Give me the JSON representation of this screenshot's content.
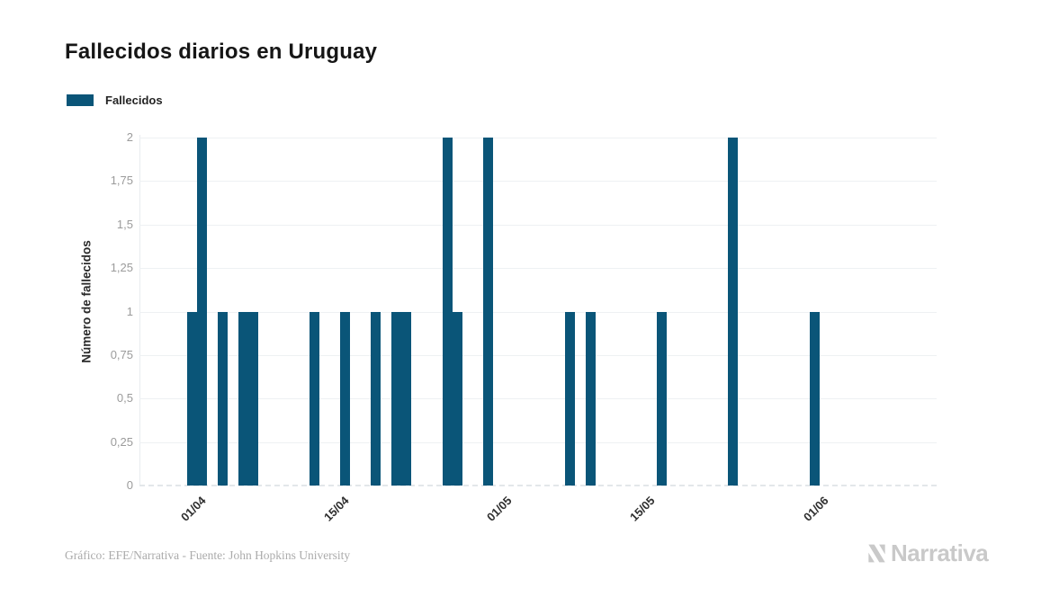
{
  "header": {
    "title": "Fallecidos diarios en Uruguay"
  },
  "legend": {
    "label": "Fallecidos"
  },
  "y_axis": {
    "title": "Número de fallecidos"
  },
  "footer": {
    "credit": "Gráfico: EFE/Narrativa - Fuente: John Hopkins University",
    "brand": "Narrativa"
  },
  "colors": {
    "bar": "#0a5578",
    "grid": "#eef1f3",
    "axis_line": "#e9ecef",
    "zero_dash": "#e3e7ea",
    "y_tick_text": "#9b9b9b",
    "x_tick_text": "#2f2f2f",
    "axis_title_text": "#2b2b2b",
    "title_text": "#161616",
    "footer_text": "#ababab",
    "brand_text": "#c9c9c9"
  },
  "chart_data": {
    "type": "bar",
    "title": "Fallecidos diarios en Uruguay",
    "xlabel": "",
    "ylabel": "Número de fallecidos",
    "ylim": [
      0,
      2
    ],
    "grid": true,
    "legend_position": "top-left",
    "x_tick_reference_date": "01/04",
    "x_axis_range_days": [
      -6.1,
      71.9
    ],
    "y_ticks": [
      {
        "value": 0,
        "label": "0"
      },
      {
        "value": 0.25,
        "label": "0,25"
      },
      {
        "value": 0.5,
        "label": "0,5"
      },
      {
        "value": 0.75,
        "label": "0,75"
      },
      {
        "value": 1,
        "label": "1"
      },
      {
        "value": 1.25,
        "label": "1,25"
      },
      {
        "value": 1.5,
        "label": "1,5"
      },
      {
        "value": 1.75,
        "label": "1,75"
      },
      {
        "value": 2,
        "label": "2"
      }
    ],
    "x_ticks": [
      {
        "label": "01/04",
        "day_offset": 0
      },
      {
        "label": "15/04",
        "day_offset": 14
      },
      {
        "label": "01/05",
        "day_offset": 30
      },
      {
        "label": "15/05",
        "day_offset": 44
      },
      {
        "label": "01/06",
        "day_offset": 61
      }
    ],
    "series": [
      {
        "name": "Fallecidos",
        "points": [
          {
            "date": "31/03",
            "day_offset": -1,
            "value": 1
          },
          {
            "date": "01/04",
            "day_offset": 0,
            "value": 2
          },
          {
            "date": "03/04",
            "day_offset": 2,
            "value": 1
          },
          {
            "date": "05/04",
            "day_offset": 4,
            "value": 1
          },
          {
            "date": "06/04",
            "day_offset": 5,
            "value": 1
          },
          {
            "date": "12/04",
            "day_offset": 11,
            "value": 1
          },
          {
            "date": "15/04",
            "day_offset": 14,
            "value": 1
          },
          {
            "date": "18/04",
            "day_offset": 17,
            "value": 1
          },
          {
            "date": "20/04",
            "day_offset": 19,
            "value": 1
          },
          {
            "date": "21/04",
            "day_offset": 20,
            "value": 1
          },
          {
            "date": "25/04",
            "day_offset": 24,
            "value": 2
          },
          {
            "date": "26/04",
            "day_offset": 25,
            "value": 1
          },
          {
            "date": "29/04",
            "day_offset": 28,
            "value": 2
          },
          {
            "date": "07/05",
            "day_offset": 36,
            "value": 1
          },
          {
            "date": "09/05",
            "day_offset": 38,
            "value": 1
          },
          {
            "date": "16/05",
            "day_offset": 45,
            "value": 1
          },
          {
            "date": "23/05",
            "day_offset": 52,
            "value": 2
          },
          {
            "date": "31/05",
            "day_offset": 60,
            "value": 1
          }
        ]
      }
    ]
  }
}
